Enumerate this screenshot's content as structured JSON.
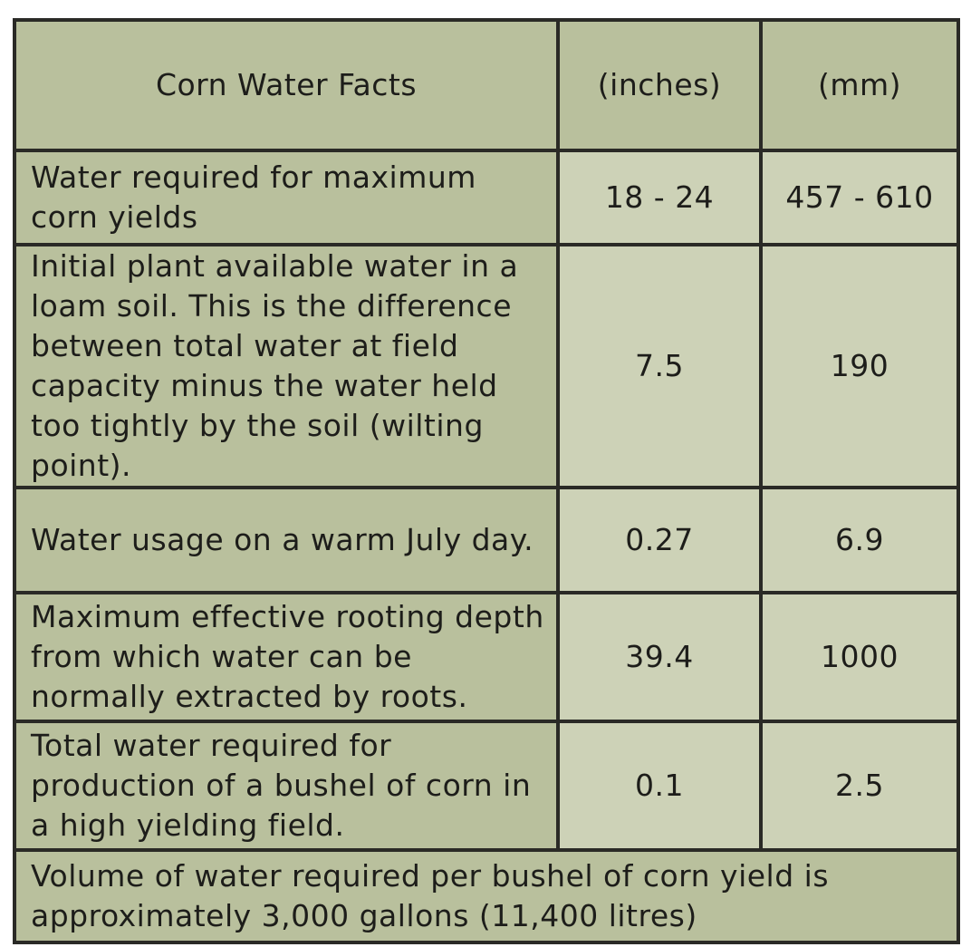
{
  "table": {
    "headers": [
      "Corn Water Facts",
      "(inches)",
      "(mm)"
    ],
    "rows": [
      {
        "label": "Water required for maximum corn yields",
        "inches": "18 - 24",
        "mm": "457 - 610"
      },
      {
        "label": "Initial plant available water in a loam soil. This is the difference between total water at field capacity minus the water held too tightly by the soil (wilting point).",
        "inches": "7.5",
        "mm": "190"
      },
      {
        "label": "Water usage on a warm July day.",
        "inches": "0.27",
        "mm": "6.9"
      },
      {
        "label": "Maximum effective rooting depth from which water can be normally extracted by roots.",
        "inches": "39.4",
        "mm": "1000"
      },
      {
        "label": "Total water required for production of a bushel of corn in a high yielding field.",
        "inches": "0.1",
        "mm": "2.5"
      }
    ],
    "footer": "Volume of water required per bushel of corn yield is approximately 3,000 gallons (11,400 litres)"
  },
  "colors": {
    "label_background": "#b9c09d",
    "value_background": "#cdd2b7",
    "border": "#2a2a26"
  }
}
